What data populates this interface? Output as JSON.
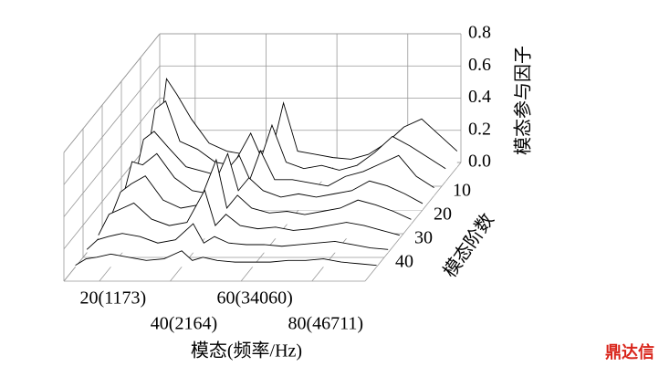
{
  "chart_data": {
    "type": "waterfall3d",
    "x_label": "模态(频率/Hz)",
    "y_label": "模态阶数",
    "z_label": "模态参与因子",
    "watermark": "鼎达信",
    "xlim": [
      10,
      95
    ],
    "xticks": [
      {
        "value": 20,
        "label": "20(1173)"
      },
      {
        "value": 40,
        "label": "40(2164)"
      },
      {
        "value": 60,
        "label": "60(34060)"
      },
      {
        "value": 80,
        "label": "80(46711)"
      }
    ],
    "ylim": [
      0,
      50
    ],
    "yticks": [
      10,
      20,
      30,
      40
    ],
    "zlim": [
      0,
      0.8
    ],
    "zticks": [
      {
        "value": 0,
        "label": "0.0"
      },
      {
        "value": 0.2,
        "label": "0.2"
      },
      {
        "value": 0.4,
        "label": "0.4"
      },
      {
        "value": 0.6,
        "label": "0.6"
      },
      {
        "value": 0.8,
        "label": "0.8"
      }
    ],
    "grid": true,
    "color": "#000000",
    "x": [
      10,
      13,
      16,
      20,
      25,
      30,
      35,
      40,
      43,
      46,
      50,
      55,
      60,
      65,
      70,
      75,
      80,
      85,
      90,
      95
    ],
    "series": [
      {
        "y": 2,
        "values": [
          0.02,
          0.55,
          0.45,
          0.3,
          0.15,
          0.1,
          0.08,
          0.1,
          0.12,
          0.4,
          0.1,
          0.08,
          0.06,
          0.05,
          0.08,
          0.15,
          0.25,
          0.3,
          0.2,
          0.1
        ]
      },
      {
        "y": 8,
        "values": [
          0.05,
          0.45,
          0.5,
          0.25,
          0.2,
          0.12,
          0.1,
          0.3,
          0.15,
          0.35,
          0.12,
          0.08,
          0.1,
          0.07,
          0.1,
          0.18,
          0.28,
          0.22,
          0.15,
          0.08
        ]
      },
      {
        "y": 14,
        "values": [
          0.05,
          0.35,
          0.4,
          0.3,
          0.18,
          0.15,
          0.12,
          0.25,
          0.1,
          0.28,
          0.1,
          0.1,
          0.08,
          0.06,
          0.12,
          0.15,
          0.2,
          0.25,
          0.12,
          0.05
        ]
      },
      {
        "y": 20,
        "values": [
          0.04,
          0.3,
          0.28,
          0.35,
          0.2,
          0.12,
          0.1,
          0.35,
          0.12,
          0.2,
          0.12,
          0.08,
          0.1,
          0.08,
          0.1,
          0.12,
          0.18,
          0.15,
          0.1,
          0.04
        ]
      },
      {
        "y": 26,
        "values": [
          0.03,
          0.2,
          0.25,
          0.3,
          0.15,
          0.1,
          0.12,
          0.4,
          0.1,
          0.18,
          0.1,
          0.07,
          0.08,
          0.06,
          0.08,
          0.1,
          0.15,
          0.12,
          0.08,
          0.03
        ]
      },
      {
        "y": 32,
        "values": [
          0.02,
          0.15,
          0.18,
          0.22,
          0.12,
          0.08,
          0.1,
          0.3,
          0.08,
          0.15,
          0.08,
          0.06,
          0.07,
          0.05,
          0.06,
          0.08,
          0.1,
          0.08,
          0.05,
          0.02
        ]
      },
      {
        "y": 38,
        "values": [
          0.02,
          0.08,
          0.1,
          0.12,
          0.1,
          0.06,
          0.08,
          0.18,
          0.06,
          0.1,
          0.06,
          0.05,
          0.05,
          0.04,
          0.05,
          0.06,
          0.07,
          0.05,
          0.03,
          0.02
        ]
      },
      {
        "y": 44,
        "values": [
          0.01,
          0.05,
          0.06,
          0.08,
          0.06,
          0.04,
          0.05,
          0.1,
          0.04,
          0.06,
          0.04,
          0.03,
          0.03,
          0.03,
          0.04,
          0.04,
          0.05,
          0.03,
          0.02,
          0.01
        ]
      }
    ]
  }
}
